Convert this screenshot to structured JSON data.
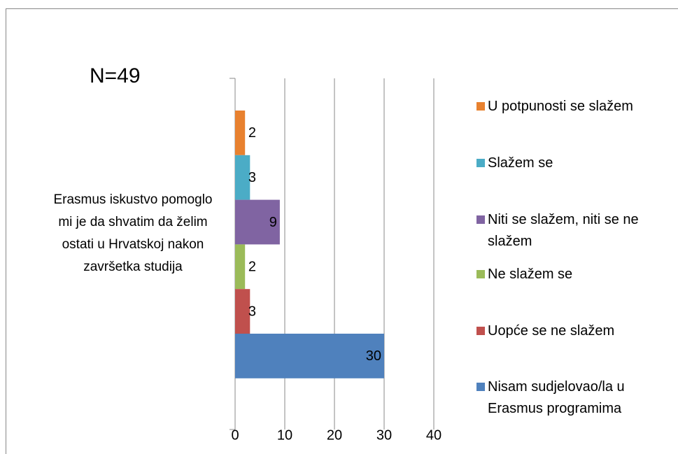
{
  "chart_data": {
    "type": "bar",
    "orientation": "horizontal",
    "annotation": "N=49",
    "categories": [
      "Erasmus iskustvo pomoglo mi je da shvatim da želim ostati u Hrvatskoj nakon završetka studija"
    ],
    "series": [
      {
        "name": "U potpunosti se slažem",
        "color": "#e8812f",
        "values": [
          2
        ]
      },
      {
        "name": "Slažem se",
        "color": "#4bacc6",
        "values": [
          3
        ]
      },
      {
        "name": "Niti se slažem, niti se ne slažem",
        "color": "#8064a2",
        "values": [
          9
        ]
      },
      {
        "name": "Ne slažem se",
        "color": "#9bbb59",
        "values": [
          2
        ]
      },
      {
        "name": "Uopće se ne slažem",
        "color": "#c0504d",
        "values": [
          3
        ]
      },
      {
        "name": "Nisam sudjelovao/la u Erasmus programima",
        "color": "#4f81bd",
        "values": [
          30
        ]
      }
    ],
    "xlim": [
      0,
      40
    ],
    "xticks": [
      0,
      10,
      20,
      30,
      40
    ],
    "grid": true,
    "legend": "right"
  }
}
